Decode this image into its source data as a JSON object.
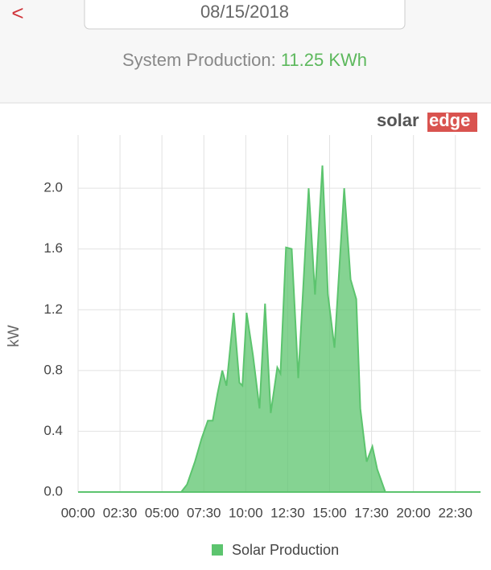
{
  "header": {
    "back": "<",
    "date": "08/15/2018"
  },
  "summary": {
    "label": "System Production:",
    "value": "11.25 KWh"
  },
  "logo": {
    "solar": "solar",
    "edge": "edge"
  },
  "chart_data": {
    "type": "area",
    "ylabel": "kW",
    "xlim": [
      0,
      24
    ],
    "ylim": [
      0,
      2.35
    ],
    "xticks": [
      {
        "value": 0,
        "label": "00:00"
      },
      {
        "value": 2.5,
        "label": "02:30"
      },
      {
        "value": 5,
        "label": "05:00"
      },
      {
        "value": 7.5,
        "label": "07:30"
      },
      {
        "value": 10,
        "label": "10:00"
      },
      {
        "value": 12.5,
        "label": "12:30"
      },
      {
        "value": 15,
        "label": "15:00"
      },
      {
        "value": 17.5,
        "label": "17:30"
      },
      {
        "value": 20,
        "label": "20:00"
      },
      {
        "value": 22.5,
        "label": "22:30"
      }
    ],
    "yticks": [
      {
        "value": 0,
        "label": "0.0"
      },
      {
        "value": 0.4,
        "label": "0.4"
      },
      {
        "value": 0.8,
        "label": "0.8"
      },
      {
        "value": 1.2,
        "label": "1.2"
      },
      {
        "value": 1.6,
        "label": "1.6"
      },
      {
        "value": 2,
        "label": "2.0"
      }
    ],
    "grid": true,
    "series": [
      {
        "name": "Solar Production",
        "color": "#5cc46e",
        "x": [
          0,
          6.15,
          6.5,
          6.97,
          7.36,
          7.74,
          8.03,
          8.32,
          8.6,
          8.85,
          9.28,
          9.62,
          9.8,
          10.05,
          10.43,
          10.82,
          11.15,
          11.49,
          11.88,
          12.07,
          12.4,
          12.74,
          13.13,
          13.75,
          14.13,
          14.57,
          14.9,
          15.29,
          15.87,
          16.25,
          16.59,
          16.83,
          17.21,
          17.55,
          17.84,
          18.32,
          24
        ],
        "values": [
          0,
          0,
          0.05,
          0.2,
          0.35,
          0.47,
          0.47,
          0.65,
          0.8,
          0.7,
          1.18,
          0.72,
          0.7,
          1.18,
          0.9,
          0.55,
          1.24,
          0.52,
          0.82,
          0.78,
          1.61,
          1.6,
          0.75,
          2.0,
          1.3,
          2.15,
          1.3,
          0.95,
          2.0,
          1.4,
          1.27,
          0.55,
          0.2,
          0.3,
          0.15,
          0,
          0
        ]
      }
    ]
  }
}
